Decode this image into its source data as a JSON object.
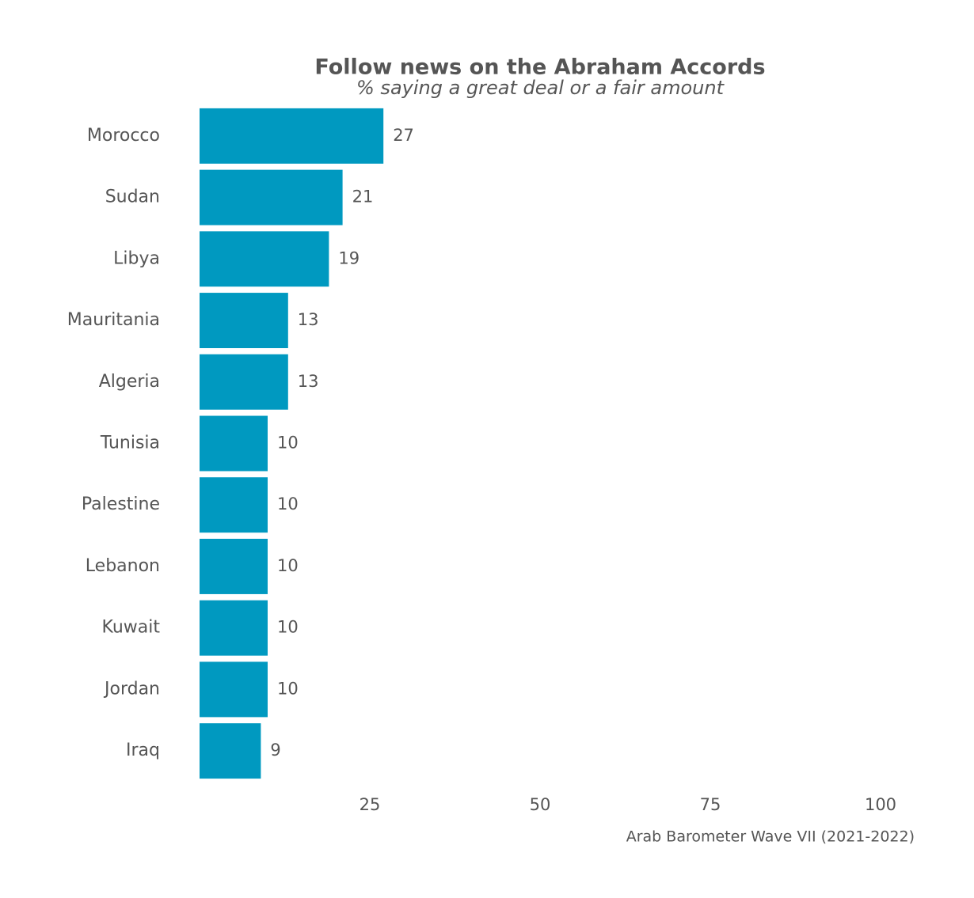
{
  "chart_data": {
    "type": "bar",
    "orientation": "horizontal",
    "title": "Follow news on the Abraham Accords",
    "subtitle": "% saying a great deal or a fair amount",
    "caption": "Arab Barometer Wave VII (2021-2022)",
    "categories": [
      "Morocco",
      "Sudan",
      "Libya",
      "Mauritania",
      "Algeria",
      "Tunisia",
      "Palestine",
      "Lebanon",
      "Kuwait",
      "Jordan",
      "Iraq"
    ],
    "values": [
      27,
      21,
      19,
      13,
      13,
      10,
      10,
      10,
      10,
      10,
      9
    ],
    "color": "#0099c0",
    "xlim": [
      0,
      100
    ],
    "xticks": [
      25,
      50,
      75,
      100
    ],
    "grid": false
  }
}
